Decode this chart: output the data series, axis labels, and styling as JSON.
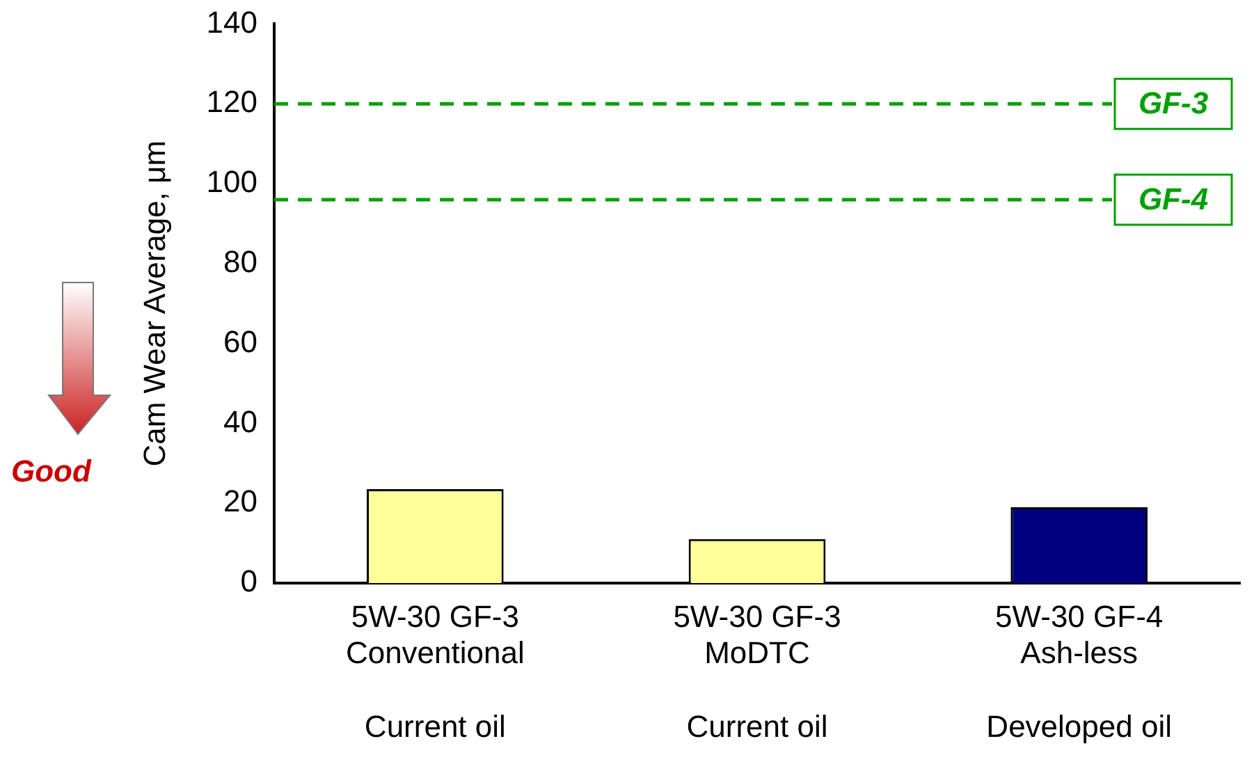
{
  "chart_data": {
    "type": "bar",
    "ylabel": "Cam Wear Average, μm",
    "categories": [
      "5W-30 GF-3\nConventional\n\nCurrent oil",
      "5W-30 GF-3\nMoDTC\n\nCurrent oil",
      "5W-30 GF-4\nAsh-less\n\nDeveloped oil"
    ],
    "values": [
      23.5,
      11,
      19
    ],
    "colors": [
      "#ffff99",
      "#ffff99",
      "#000080"
    ],
    "ylim": [
      0,
      140
    ],
    "yticks": [
      0,
      20,
      40,
      60,
      80,
      100,
      120,
      140
    ],
    "grid": false,
    "legend": false,
    "ref_lines": [
      {
        "axis": "y",
        "value": 120,
        "label": "GF-3",
        "color": "#00a000",
        "line_style": "dashed"
      },
      {
        "axis": "y",
        "value": 96,
        "label": "GF-4",
        "color": "#00a000",
        "line_style": "dashed"
      }
    ],
    "annotations": [
      "Good"
    ]
  }
}
